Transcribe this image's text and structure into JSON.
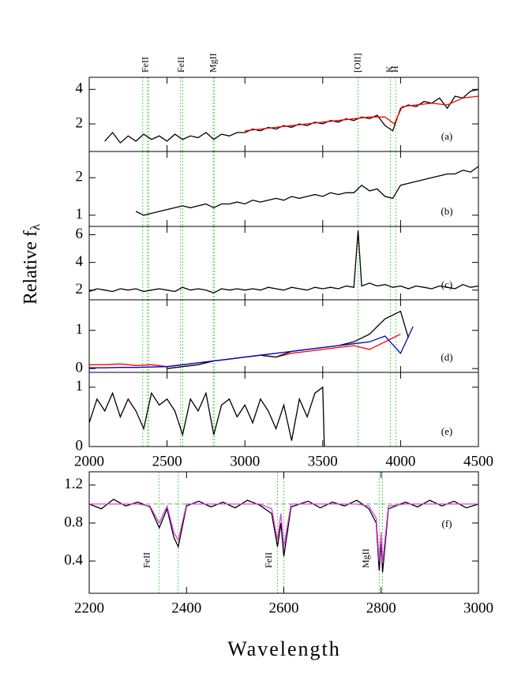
{
  "y_label": "Relative f",
  "y_label_sub": "λ",
  "x_label": "Wavelength",
  "chart_data": [
    {
      "type": "line",
      "panel_label": "(a)",
      "xlim": [
        2000,
        4500
      ],
      "ylim": [
        0.4,
        4.7
      ],
      "yticks": [
        2,
        4
      ],
      "line_markers": [
        2344,
        2374,
        2383,
        2587,
        2600,
        2796,
        2803,
        3727,
        3934,
        3969
      ],
      "marker_labels": [
        {
          "x": 2365,
          "label": "FeII"
        },
        {
          "x": 2594,
          "label": "FeII"
        },
        {
          "x": 2800,
          "label": "MgII"
        },
        {
          "x": 3727,
          "label": "[OII]"
        },
        {
          "x": 3934,
          "label": "K"
        },
        {
          "x": 3969,
          "label": "H"
        }
      ],
      "series": [
        {
          "color": "#000000",
          "x": [
            2100,
            2150,
            2200,
            2250,
            2300,
            2350,
            2400,
            2450,
            2500,
            2550,
            2600,
            2650,
            2700,
            2750,
            2800,
            2850,
            2900,
            2950,
            3000,
            3050,
            3100,
            3150,
            3200,
            3250,
            3300,
            3350,
            3400,
            3450,
            3500,
            3550,
            3600,
            3650,
            3700,
            3750,
            3800,
            3850,
            3900,
            3950,
            4000,
            4050,
            4100,
            4150,
            4200,
            4250,
            4300,
            4350,
            4400,
            4450,
            4500
          ],
          "values": [
            1.0,
            1.5,
            0.9,
            1.3,
            1.0,
            1.4,
            1.1,
            1.3,
            1.0,
            1.4,
            1.1,
            1.3,
            1.2,
            1.5,
            1.1,
            1.4,
            1.3,
            1.5,
            1.5,
            1.7,
            1.6,
            1.8,
            1.7,
            1.9,
            1.8,
            2.0,
            1.9,
            2.1,
            2.0,
            2.2,
            2.1,
            2.3,
            2.2,
            2.4,
            2.3,
            2.5,
            1.9,
            1.6,
            2.9,
            3.1,
            3.0,
            3.3,
            3.2,
            3.5,
            2.9,
            3.6,
            3.5,
            3.9,
            4.0
          ]
        },
        {
          "color": "#ff0000",
          "x": [
            3000,
            3100,
            3200,
            3300,
            3400,
            3500,
            3600,
            3700,
            3800,
            3900,
            3960,
            4010,
            4100,
            4200,
            4300,
            4400,
            4500
          ],
          "values": [
            1.6,
            1.7,
            1.8,
            1.9,
            2.0,
            2.1,
            2.2,
            2.3,
            2.4,
            2.4,
            2.0,
            3.0,
            3.1,
            3.2,
            3.1,
            3.5,
            3.6
          ]
        }
      ]
    },
    {
      "type": "line",
      "panel_label": "(b)",
      "xlim": [
        2000,
        4500
      ],
      "ylim": [
        0.7,
        2.7
      ],
      "yticks": [
        1,
        2
      ],
      "line_markers": [
        2344,
        2374,
        2383,
        2587,
        2600,
        2796,
        2803,
        3727,
        3934,
        3969
      ],
      "series": [
        {
          "color": "#000000",
          "x": [
            2300,
            2350,
            2400,
            2450,
            2500,
            2550,
            2600,
            2650,
            2700,
            2750,
            2800,
            2850,
            2900,
            2950,
            3000,
            3050,
            3100,
            3150,
            3200,
            3250,
            3300,
            3350,
            3400,
            3450,
            3500,
            3550,
            3600,
            3650,
            3700,
            3750,
            3800,
            3850,
            3900,
            3950,
            4000,
            4050,
            4100,
            4150,
            4200,
            4250,
            4300,
            4350,
            4400,
            4450,
            4500
          ],
          "values": [
            1.1,
            1.0,
            1.05,
            1.1,
            1.15,
            1.2,
            1.25,
            1.2,
            1.25,
            1.3,
            1.2,
            1.3,
            1.3,
            1.35,
            1.3,
            1.4,
            1.35,
            1.4,
            1.45,
            1.4,
            1.5,
            1.45,
            1.5,
            1.55,
            1.5,
            1.6,
            1.55,
            1.6,
            1.6,
            1.8,
            1.65,
            1.7,
            1.5,
            1.45,
            1.8,
            1.85,
            1.9,
            1.95,
            2.0,
            2.05,
            2.1,
            2.1,
            2.2,
            2.15,
            2.3
          ]
        }
      ]
    },
    {
      "type": "line",
      "panel_label": "(c)",
      "xlim": [
        2000,
        4500
      ],
      "ylim": [
        1.3,
        6.6
      ],
      "yticks": [
        2,
        4,
        6
      ],
      "line_markers": [
        2344,
        2374,
        2383,
        2587,
        2600,
        2796,
        2803,
        3727,
        3934,
        3969
      ],
      "series": [
        {
          "color": "#000000",
          "x": [
            2000,
            2050,
            2100,
            2150,
            2200,
            2250,
            2300,
            2350,
            2400,
            2450,
            2500,
            2550,
            2600,
            2650,
            2700,
            2750,
            2800,
            2850,
            2900,
            2950,
            3000,
            3050,
            3100,
            3150,
            3200,
            3250,
            3300,
            3350,
            3400,
            3450,
            3500,
            3550,
            3600,
            3650,
            3700,
            3727,
            3750,
            3800,
            3850,
            3900,
            3950,
            4000,
            4050,
            4100,
            4150,
            4200,
            4250,
            4300,
            4350,
            4400,
            4450,
            4500
          ],
          "values": [
            1.9,
            2.1,
            2.0,
            1.9,
            2.1,
            2.0,
            2.1,
            1.9,
            2.0,
            2.1,
            2.0,
            1.9,
            2.2,
            2.0,
            2.1,
            2.0,
            1.8,
            2.1,
            2.0,
            2.1,
            2.0,
            2.1,
            2.0,
            2.2,
            2.1,
            2.0,
            2.2,
            2.1,
            2.0,
            2.2,
            2.1,
            2.2,
            2.1,
            2.3,
            2.2,
            6.3,
            2.3,
            2.5,
            2.3,
            2.4,
            2.2,
            2.3,
            2.1,
            2.3,
            2.2,
            2.1,
            2.3,
            2.2,
            2.1,
            2.4,
            2.2,
            2.3
          ]
        }
      ]
    },
    {
      "type": "line",
      "panel_label": "(d)",
      "xlim": [
        2000,
        4500
      ],
      "ylim": [
        -0.1,
        1.8
      ],
      "yticks": [
        0,
        1
      ],
      "line_markers": [
        2344,
        2374,
        2383,
        2587,
        2600,
        2796,
        2803,
        3727,
        3934,
        3969
      ],
      "series": [
        {
          "color": "#ff0000",
          "x": [
            2000,
            2100,
            2200,
            2300,
            2400,
            2500,
            2600,
            2700,
            2800,
            2900,
            3000,
            3100,
            3200,
            3300,
            3400,
            3500,
            3600,
            3700,
            3800,
            3900,
            4000
          ],
          "values": [
            0.1,
            0.1,
            0.12,
            0.08,
            0.1,
            0.05,
            0.1,
            0.15,
            0.2,
            0.25,
            0.3,
            0.35,
            0.3,
            0.4,
            0.45,
            0.5,
            0.55,
            0.6,
            0.5,
            0.7,
            0.9
          ]
        },
        {
          "color": "#000000",
          "x": [
            2500,
            2600,
            2700,
            2800,
            2900,
            3000,
            3100,
            3200,
            3300,
            3400,
            3500,
            3600,
            3700,
            3800,
            3900,
            4000,
            4050
          ],
          "values": [
            0.0,
            0.05,
            0.1,
            0.2,
            0.25,
            0.3,
            0.35,
            0.3,
            0.45,
            0.5,
            0.55,
            0.6,
            0.7,
            0.9,
            1.3,
            1.5,
            0.8
          ]
        },
        {
          "color": "#0000cc",
          "x": [
            2000,
            2100,
            2200,
            2300,
            2400,
            2500,
            2600,
            2700,
            2800,
            2900,
            3000,
            3100,
            3200,
            3300,
            3400,
            3500,
            3600,
            3700,
            3800,
            3900,
            4000,
            4080
          ],
          "values": [
            0.02,
            0.02,
            0.03,
            0.03,
            0.04,
            0.05,
            0.1,
            0.15,
            0.2,
            0.25,
            0.3,
            0.35,
            0.4,
            0.45,
            0.5,
            0.55,
            0.6,
            0.65,
            0.7,
            0.85,
            0.4,
            1.1
          ]
        }
      ]
    },
    {
      "type": "line",
      "panel_label": "(e)",
      "xlim": [
        2000,
        4500
      ],
      "ylim": [
        0,
        1.25
      ],
      "yticks": [
        0,
        1
      ],
      "xticks": [
        2000,
        2500,
        3000,
        3500,
        4000,
        4500
      ],
      "line_markers": [
        2344,
        2374,
        2383,
        2587,
        2600,
        2796,
        2803,
        3727,
        3934,
        3969
      ],
      "series": [
        {
          "color": "#000000",
          "x": [
            2000,
            2050,
            2100,
            2150,
            2200,
            2250,
            2300,
            2350,
            2400,
            2450,
            2500,
            2550,
            2600,
            2650,
            2700,
            2750,
            2800,
            2850,
            2900,
            2950,
            3000,
            3050,
            3100,
            3150,
            3200,
            3250,
            3300,
            3350,
            3400,
            3450,
            3500,
            3510
          ],
          "values": [
            0.4,
            0.8,
            0.6,
            0.9,
            0.5,
            0.8,
            0.6,
            0.3,
            0.9,
            0.7,
            0.8,
            0.6,
            0.2,
            0.8,
            0.6,
            0.9,
            0.2,
            0.7,
            0.8,
            0.5,
            0.7,
            0.4,
            0.8,
            0.6,
            0.3,
            0.7,
            0.1,
            0.8,
            0.5,
            0.9,
            1.0,
            0.0
          ]
        }
      ]
    },
    {
      "type": "line",
      "panel_label": "(f)",
      "xlim": [
        2200,
        3000
      ],
      "ylim": [
        0.06,
        1.34
      ],
      "yticks": [
        0.4,
        0.8,
        1.2
      ],
      "xticks": [
        2200,
        2400,
        2600,
        2800,
        3000
      ],
      "reference_line": 1.0,
      "line_markers": [
        2344,
        2383,
        2587,
        2600,
        2796,
        2803
      ],
      "marker_labels": [
        {
          "x": 2320,
          "label": "FeII"
        },
        {
          "x": 2570,
          "label": "FeII"
        },
        {
          "x": 2770,
          "label": "MgII"
        }
      ],
      "series": [
        {
          "color": "#000000",
          "x": [
            2200,
            2225,
            2250,
            2275,
            2300,
            2325,
            2344,
            2360,
            2374,
            2383,
            2400,
            2425,
            2450,
            2475,
            2500,
            2525,
            2550,
            2575,
            2587,
            2594,
            2600,
            2615,
            2650,
            2675,
            2700,
            2725,
            2750,
            2775,
            2790,
            2796,
            2800,
            2803,
            2815,
            2850,
            2875,
            2900,
            2925,
            2950,
            2975,
            3000
          ],
          "values": [
            1.0,
            0.95,
            1.05,
            0.98,
            1.02,
            0.97,
            0.75,
            0.95,
            0.65,
            0.55,
            0.98,
            1.03,
            0.97,
            1.02,
            0.96,
            1.04,
            0.99,
            0.9,
            0.55,
            0.8,
            0.45,
            0.97,
            1.03,
            0.96,
            1.02,
            0.98,
            1.04,
            0.95,
            0.8,
            0.3,
            0.6,
            0.28,
            0.95,
            1.02,
            0.97,
            1.04,
            0.98,
            1.03,
            0.96,
            1.0
          ]
        },
        {
          "color": "#e040e0",
          "x": [
            2200,
            2225,
            2250,
            2275,
            2300,
            2325,
            2344,
            2360,
            2374,
            2383,
            2400,
            2425,
            2450,
            2475,
            2500,
            2525,
            2550,
            2575,
            2587,
            2594,
            2600,
            2615,
            2650,
            2675,
            2700,
            2725,
            2750,
            2775,
            2790,
            2796,
            2800,
            2803,
            2815,
            2850,
            2875,
            2900,
            2925,
            2950,
            2975,
            3000
          ],
          "values": [
            1.0,
            1.0,
            1.0,
            1.0,
            1.0,
            0.98,
            0.8,
            0.98,
            0.7,
            0.62,
            1.0,
            1.0,
            1.0,
            1.0,
            1.0,
            1.0,
            1.0,
            0.95,
            0.62,
            0.9,
            0.55,
            1.0,
            1.0,
            1.0,
            1.0,
            1.0,
            1.0,
            0.98,
            0.85,
            0.4,
            0.7,
            0.38,
            0.98,
            1.0,
            1.0,
            1.0,
            1.0,
            1.0,
            1.0,
            1.0
          ]
        }
      ]
    }
  ]
}
